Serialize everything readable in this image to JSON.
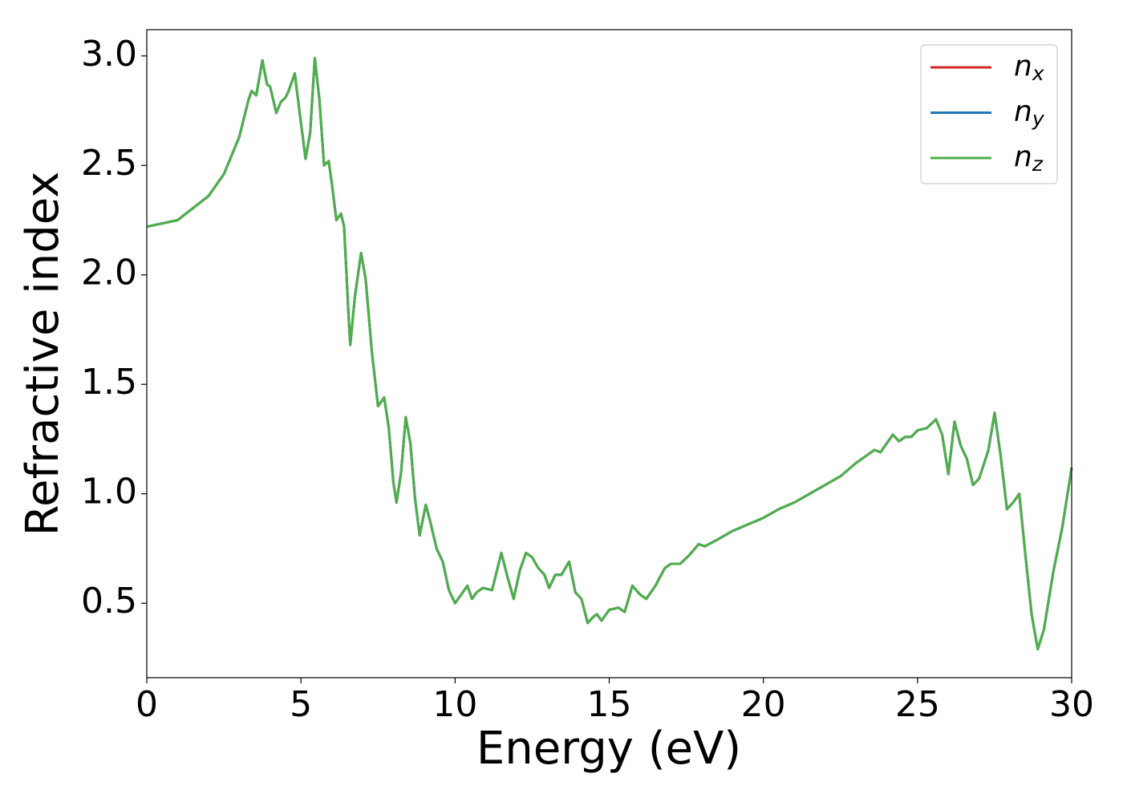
{
  "chart_data": {
    "type": "line",
    "xlabel": "Energy (eV)",
    "ylabel": "Refractive index",
    "x": [
      0,
      1,
      2,
      2.5,
      3,
      3.3,
      3.4,
      3.55,
      3.75,
      3.9,
      4.0,
      4.2,
      4.35,
      4.5,
      4.6,
      4.8,
      4.95,
      5.15,
      5.3,
      5.45,
      5.6,
      5.75,
      5.9,
      6.0,
      6.15,
      6.3,
      6.4,
      6.55,
      6.6,
      6.75,
      6.95,
      7.1,
      7.3,
      7.5,
      7.7,
      7.85,
      8.0,
      8.1,
      8.25,
      8.4,
      8.55,
      8.7,
      8.85,
      9.05,
      9.2,
      9.4,
      9.6,
      9.8,
      10.0,
      10.2,
      10.4,
      10.55,
      10.7,
      10.9,
      11.2,
      11.5,
      11.7,
      11.9,
      12.1,
      12.3,
      12.5,
      12.7,
      12.9,
      13.05,
      13.25,
      13.45,
      13.7,
      13.9,
      14.1,
      14.3,
      14.5,
      14.6,
      14.75,
      15.0,
      15.3,
      15.5,
      15.75,
      16.0,
      16.2,
      16.5,
      16.8,
      17.0,
      17.3,
      17.6,
      17.9,
      18.1,
      18.5,
      19.0,
      19.5,
      20,
      20.5,
      21,
      21.5,
      22,
      22.5,
      23,
      23.3,
      23.6,
      23.8,
      24.0,
      24.2,
      24.4,
      24.6,
      24.8,
      25.0,
      25.3,
      25.6,
      25.8,
      26.0,
      26.2,
      26.4,
      26.6,
      26.8,
      27.0,
      27.3,
      27.5,
      27.7,
      27.9,
      28.1,
      28.3,
      28.5,
      28.7,
      28.9,
      29.1,
      29.4,
      29.7,
      30
    ],
    "series": [
      {
        "name": "nx",
        "color": "#d62728",
        "values": [
          2.22,
          2.25,
          2.36,
          2.46,
          2.63,
          2.8,
          2.84,
          2.82,
          2.98,
          2.87,
          2.86,
          2.74,
          2.79,
          2.81,
          2.84,
          2.92,
          2.75,
          2.53,
          2.65,
          2.99,
          2.8,
          2.5,
          2.52,
          2.42,
          2.25,
          2.28,
          2.22,
          1.8,
          1.68,
          1.9,
          2.1,
          1.98,
          1.65,
          1.4,
          1.44,
          1.3,
          1.05,
          0.96,
          1.1,
          1.35,
          1.23,
          0.98,
          0.81,
          0.95,
          0.87,
          0.75,
          0.69,
          0.56,
          0.5,
          0.54,
          0.58,
          0.52,
          0.55,
          0.57,
          0.56,
          0.73,
          0.62,
          0.52,
          0.65,
          0.73,
          0.71,
          0.66,
          0.63,
          0.57,
          0.63,
          0.63,
          0.69,
          0.55,
          0.52,
          0.41,
          0.44,
          0.45,
          0.42,
          0.47,
          0.48,
          0.46,
          0.58,
          0.54,
          0.52,
          0.58,
          0.66,
          0.68,
          0.68,
          0.72,
          0.77,
          0.76,
          0.79,
          0.83,
          0.86,
          0.89,
          0.93,
          0.96,
          1.0,
          1.04,
          1.08,
          1.14,
          1.17,
          1.2,
          1.19,
          1.23,
          1.27,
          1.24,
          1.26,
          1.26,
          1.29,
          1.3,
          1.34,
          1.27,
          1.09,
          1.33,
          1.22,
          1.16,
          1.04,
          1.07,
          1.2,
          1.37,
          1.17,
          0.93,
          0.96,
          1.0,
          0.72,
          0.45,
          0.29,
          0.38,
          0.64,
          0.85,
          1.12
        ]
      },
      {
        "name": "ny",
        "color": "#1f77b4",
        "values": [
          2.22,
          2.25,
          2.36,
          2.46,
          2.63,
          2.8,
          2.84,
          2.82,
          2.98,
          2.87,
          2.86,
          2.74,
          2.79,
          2.81,
          2.84,
          2.92,
          2.75,
          2.53,
          2.65,
          2.99,
          2.8,
          2.5,
          2.52,
          2.42,
          2.25,
          2.28,
          2.22,
          1.8,
          1.68,
          1.9,
          2.1,
          1.98,
          1.65,
          1.4,
          1.44,
          1.3,
          1.05,
          0.96,
          1.1,
          1.35,
          1.23,
          0.98,
          0.81,
          0.95,
          0.87,
          0.75,
          0.69,
          0.56,
          0.5,
          0.54,
          0.58,
          0.52,
          0.55,
          0.57,
          0.56,
          0.73,
          0.62,
          0.52,
          0.65,
          0.73,
          0.71,
          0.66,
          0.63,
          0.57,
          0.63,
          0.63,
          0.69,
          0.55,
          0.52,
          0.41,
          0.44,
          0.45,
          0.42,
          0.47,
          0.48,
          0.46,
          0.58,
          0.54,
          0.52,
          0.58,
          0.66,
          0.68,
          0.68,
          0.72,
          0.77,
          0.76,
          0.79,
          0.83,
          0.86,
          0.89,
          0.93,
          0.96,
          1.0,
          1.04,
          1.08,
          1.14,
          1.17,
          1.2,
          1.19,
          1.23,
          1.27,
          1.24,
          1.26,
          1.26,
          1.29,
          1.3,
          1.34,
          1.27,
          1.09,
          1.33,
          1.22,
          1.16,
          1.04,
          1.07,
          1.2,
          1.37,
          1.17,
          0.93,
          0.96,
          1.0,
          0.72,
          0.45,
          0.29,
          0.38,
          0.64,
          0.85,
          1.12
        ]
      },
      {
        "name": "nz",
        "color": "#4daf4a",
        "values": [
          2.22,
          2.25,
          2.36,
          2.46,
          2.63,
          2.8,
          2.84,
          2.82,
          2.98,
          2.87,
          2.86,
          2.74,
          2.79,
          2.81,
          2.84,
          2.92,
          2.75,
          2.53,
          2.65,
          2.99,
          2.8,
          2.5,
          2.52,
          2.42,
          2.25,
          2.28,
          2.22,
          1.8,
          1.68,
          1.9,
          2.1,
          1.98,
          1.65,
          1.4,
          1.44,
          1.3,
          1.05,
          0.96,
          1.1,
          1.35,
          1.23,
          0.98,
          0.81,
          0.95,
          0.87,
          0.75,
          0.69,
          0.56,
          0.5,
          0.54,
          0.58,
          0.52,
          0.55,
          0.57,
          0.56,
          0.73,
          0.62,
          0.52,
          0.65,
          0.73,
          0.71,
          0.66,
          0.63,
          0.57,
          0.63,
          0.63,
          0.69,
          0.55,
          0.52,
          0.41,
          0.44,
          0.45,
          0.42,
          0.47,
          0.48,
          0.46,
          0.58,
          0.54,
          0.52,
          0.58,
          0.66,
          0.68,
          0.68,
          0.72,
          0.77,
          0.76,
          0.79,
          0.83,
          0.86,
          0.89,
          0.93,
          0.96,
          1.0,
          1.04,
          1.08,
          1.14,
          1.17,
          1.2,
          1.19,
          1.23,
          1.27,
          1.24,
          1.26,
          1.26,
          1.29,
          1.3,
          1.34,
          1.27,
          1.09,
          1.33,
          1.22,
          1.16,
          1.04,
          1.07,
          1.2,
          1.37,
          1.17,
          0.93,
          0.96,
          1.0,
          0.72,
          0.45,
          0.29,
          0.38,
          0.64,
          0.85,
          1.12
        ]
      }
    ],
    "xlim": [
      0,
      30
    ],
    "xticks": [
      0,
      5,
      10,
      15,
      20,
      25,
      30
    ],
    "ylim": [
      0.16,
      3.12
    ],
    "yticks": [
      0.5,
      {
        "value": 1,
        "label": "1.0"
      },
      1.5,
      {
        "value": 2,
        "label": "2.0"
      },
      2.5,
      {
        "value": 3,
        "label": "3.0"
      }
    ],
    "legend": "upper right",
    "grid": false
  }
}
